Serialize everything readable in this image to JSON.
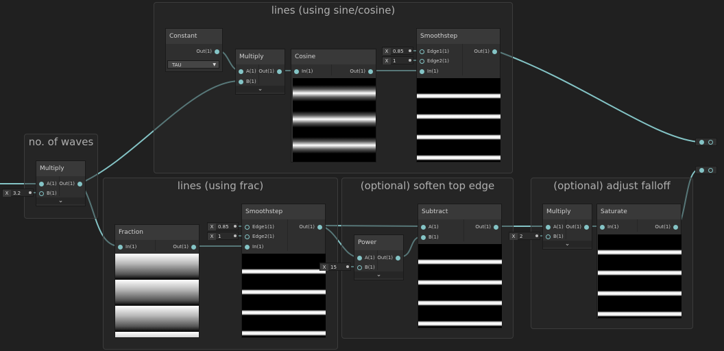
{
  "groups": {
    "sine": {
      "title": "lines (using sine/cosine)"
    },
    "waves": {
      "title": "no. of waves"
    },
    "frac": {
      "title": "lines (using frac)"
    },
    "soften": {
      "title": "(optional) soften top edge"
    },
    "falloff": {
      "title": "(optional) adjust falloff"
    }
  },
  "nodes": {
    "constant": {
      "title": "Constant",
      "out": "Out(1)",
      "dropdown": "TAU"
    },
    "multiply_top": {
      "title": "Multiply",
      "in_a": "A(1)",
      "in_b": "B(1)",
      "out": "Out(1)"
    },
    "cosine": {
      "title": "Cosine",
      "in": "In(1)",
      "out": "Out(1)"
    },
    "smoothstep_top": {
      "title": "Smoothstep",
      "edge1": "Edge1(1)",
      "edge2": "Edge2(1)",
      "in": "In(1)",
      "out": "Out(1)"
    },
    "multiply_waves": {
      "title": "Multiply",
      "in_a": "A(1)",
      "in_b": "B(1)",
      "out": "Out(1)"
    },
    "fraction": {
      "title": "Fraction",
      "in": "In(1)",
      "out": "Out(1)"
    },
    "smoothstep_frac": {
      "title": "Smoothstep",
      "edge1": "Edge1(1)",
      "edge2": "Edge2(1)",
      "in": "In(1)",
      "out": "Out(1)"
    },
    "subtract": {
      "title": "Subtract",
      "in_a": "A(1)",
      "in_b": "B(1)",
      "out": "Out(1)"
    },
    "power": {
      "title": "Power",
      "in_a": "A(1)",
      "in_b": "B(1)",
      "out": "Out(1)"
    },
    "multiply_falloff": {
      "title": "Multiply",
      "in_a": "A(1)",
      "in_b": "B(1)",
      "out": "Out(1)"
    },
    "saturate": {
      "title": "Saturate",
      "in": "In(1)",
      "out": "Out(1)"
    }
  },
  "fields": {
    "waves_b": {
      "label": "X",
      "value": "3.2"
    },
    "top_edge1": {
      "label": "X",
      "value": "0.85"
    },
    "top_edge2": {
      "label": "X",
      "value": "1"
    },
    "frac_edge1": {
      "label": "X",
      "value": "0.85"
    },
    "frac_edge2": {
      "label": "X",
      "value": "1"
    },
    "power_b": {
      "label": "X",
      "value": "15"
    },
    "falloff_b": {
      "label": "X",
      "value": "2"
    }
  },
  "icons": {
    "expand": "chevron-down-icon",
    "port": "port-dot-icon"
  },
  "colors": {
    "wire": "#84c4c6",
    "background": "#202020",
    "node": "#2f2f2f",
    "header": "#393939"
  }
}
